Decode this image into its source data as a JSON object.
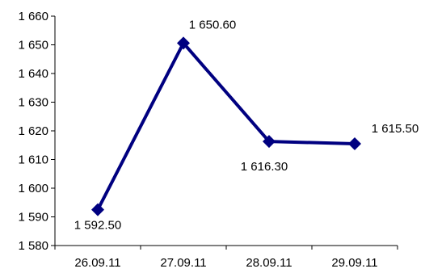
{
  "chart_data": {
    "type": "line",
    "categories": [
      "26.09.11",
      "27.09.11",
      "28.09.11",
      "29.09.11"
    ],
    "series": [
      {
        "values": [
          1592.5,
          1650.6,
          1616.3,
          1615.5
        ]
      }
    ],
    "data_labels": [
      "1 592.50",
      "1 650.60",
      "1 616.30",
      "1 615.50"
    ],
    "ylim": [
      1580,
      1660
    ],
    "yticks": [
      1580,
      1590,
      1600,
      1610,
      1620,
      1630,
      1640,
      1650,
      1660
    ],
    "ytick_labels": [
      "1 580",
      "1 590",
      "1 600",
      "1 610",
      "1 620",
      "1 630",
      "1 640",
      "1 650",
      "1 660"
    ],
    "title": "",
    "xlabel": "",
    "ylabel": "",
    "grid": false,
    "legend": false,
    "line_color": "#000080",
    "marker": "diamond"
  }
}
